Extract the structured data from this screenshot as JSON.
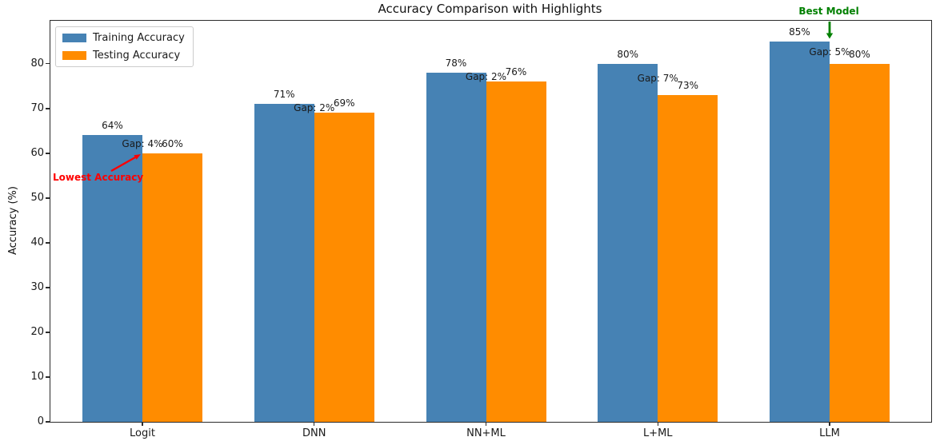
{
  "chart_data": {
    "type": "bar",
    "title": "Accuracy Comparison with Highlights",
    "xlabel": "",
    "ylabel": "Accuracy (%)",
    "categories": [
      "Logit",
      "DNN",
      "NN+ML",
      "L+ML",
      "LLM"
    ],
    "series": [
      {
        "name": "Training Accuracy",
        "color": "#4682B4",
        "values": [
          64,
          71,
          78,
          80,
          85
        ]
      },
      {
        "name": "Testing Accuracy",
        "color": "#FF8C00",
        "values": [
          60,
          69,
          76,
          73,
          80
        ]
      }
    ],
    "bar_value_suffix": "%",
    "gap_labels": {
      "prefix": "Gap: ",
      "suffix": "%",
      "values": [
        4,
        2,
        2,
        7,
        5
      ]
    },
    "ylim": [
      0,
      89.6
    ],
    "yticks": [
      0,
      10,
      20,
      30,
      40,
      50,
      60,
      70,
      80
    ],
    "grid": false,
    "legend_position": "upper left"
  },
  "legend": {
    "items": [
      {
        "label": "Training Accuracy",
        "color": "#4682B4"
      },
      {
        "label": "Testing Accuracy",
        "color": "#FF8C00"
      }
    ]
  },
  "annotations": {
    "lowest_accuracy": {
      "text": "Lowest Accuracy",
      "color": "#FF0000"
    },
    "best_model": {
      "text": "Best Model",
      "color": "#008000"
    }
  }
}
